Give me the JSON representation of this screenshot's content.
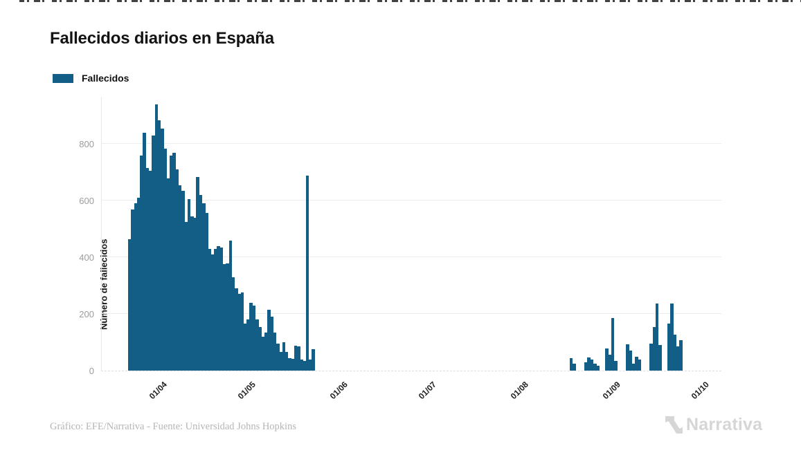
{
  "page": {
    "title": "Fallecidos diarios en España",
    "footer_credit": "Gráfico: EFE/Narrativa - Fuente: Universidad Johns Hopkins",
    "logo_text": "Narrativa"
  },
  "legend": {
    "label": "Fallecidos"
  },
  "colors": {
    "bar": "#135e87",
    "grid": "#ededed",
    "axis_line": "#d8dfe6",
    "y_tick_text": "#9c9c9c",
    "x_tick_text": "#1f1f1f",
    "logo_gray": "#d6d6d6"
  },
  "chart_data": {
    "type": "bar",
    "title": "Fallecidos diarios en España",
    "series_name": "Fallecidos",
    "xlabel": "",
    "ylabel": "Número de fallecidos",
    "ylim": [
      0,
      950
    ],
    "yticks": [
      0,
      200,
      400,
      600,
      800
    ],
    "grid": "horizontal-only",
    "legend_position": "top-left",
    "x_unit": "day",
    "x_start_date": "2020-03-23",
    "num_days": 196,
    "x_ticks": [
      {
        "label": "01/04",
        "day": 9
      },
      {
        "label": "01/05",
        "day": 39
      },
      {
        "label": "01/06",
        "day": 70
      },
      {
        "label": "01/07",
        "day": 100
      },
      {
        "label": "01/08",
        "day": 131
      },
      {
        "label": "01/09",
        "day": 162
      },
      {
        "label": "01/10",
        "day": 192
      }
    ],
    "values": [
      465,
      570,
      590,
      610,
      760,
      840,
      715,
      705,
      830,
      940,
      885,
      855,
      785,
      680,
      760,
      770,
      710,
      655,
      635,
      525,
      605,
      545,
      540,
      685,
      620,
      590,
      558,
      430,
      410,
      430,
      440,
      435,
      375,
      378,
      460,
      330,
      290,
      272,
      277,
      165,
      180,
      240,
      230,
      180,
      155,
      120,
      135,
      215,
      190,
      135,
      95,
      65,
      100,
      65,
      45,
      42,
      88,
      85,
      40,
      35,
      690,
      38,
      75,
      0,
      0,
      0,
      0,
      0,
      0,
      0,
      0,
      0,
      0,
      0,
      0,
      0,
      0,
      0,
      0,
      0,
      0,
      0,
      0,
      0,
      0,
      0,
      0,
      0,
      0,
      0,
      0,
      0,
      0,
      0,
      0,
      0,
      0,
      0,
      0,
      0,
      0,
      0,
      0,
      0,
      0,
      0,
      0,
      0,
      0,
      0,
      0,
      0,
      0,
      0,
      0,
      0,
      0,
      0,
      0,
      0,
      0,
      0,
      0,
      0,
      0,
      0,
      0,
      0,
      0,
      0,
      0,
      0,
      0,
      0,
      0,
      0,
      0,
      0,
      0,
      0,
      0,
      0,
      0,
      0,
      0,
      0,
      0,
      0,
      0,
      45,
      25,
      0,
      0,
      0,
      30,
      47,
      40,
      25,
      18,
      0,
      0,
      78,
      55,
      185,
      35,
      0,
      0,
      0,
      92,
      70,
      25,
      50,
      40,
      0,
      0,
      0,
      95,
      155,
      237,
      90,
      0,
      0,
      165,
      238,
      128,
      85,
      107,
      0,
      0,
      0,
      0,
      0,
      0,
      0,
      0,
      0
    ]
  }
}
